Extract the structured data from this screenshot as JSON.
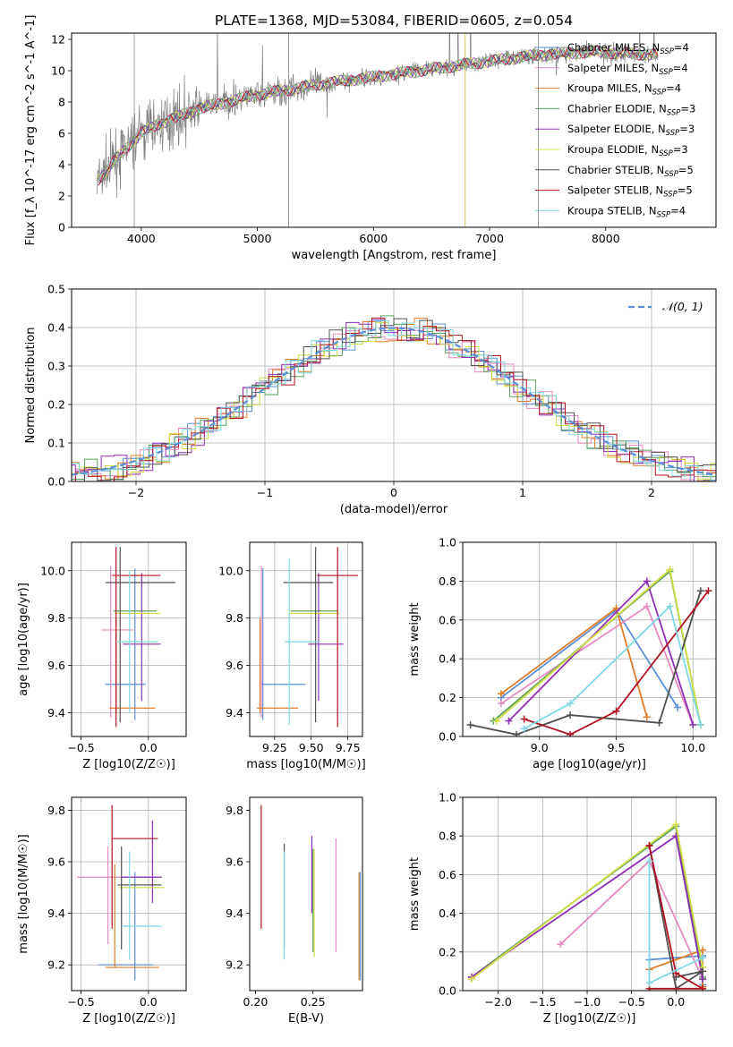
{
  "title": "PLATE=1368, MJD=53084, FIBERID=0605, z=0.054",
  "colors": {
    "chabrier_miles": "#5b8fd6",
    "salpeter_miles": "#e58ac0",
    "kroupa_miles": "#e07c28",
    "chabrier_elodie": "#5aa05a",
    "salpeter_elodie": "#8f2fb5",
    "kroupa_elodie": "#d2dc45",
    "chabrier_stelib": "#505050",
    "salpeter_stelib": "#b01020",
    "kroupa_stelib": "#7fd8e4",
    "data": "#808080",
    "gaussian": "#5b8fd6"
  },
  "legend": [
    {
      "text": "Chabrier MILES, N_SSP=4",
      "color": "#5b8fd6"
    },
    {
      "text": "Salpeter MILES, N_SSP=4",
      "color": "#e58ac0"
    },
    {
      "text": "Kroupa MILES, N_SSP=4",
      "color": "#e07c28"
    },
    {
      "text": "Chabrier ELODIE, N_SSP=3",
      "color": "#5aa05a"
    },
    {
      "text": "Salpeter ELODIE, N_SSP=3",
      "color": "#8f2fb5"
    },
    {
      "text": "Kroupa ELODIE, N_SSP=3",
      "color": "#d2dc45"
    },
    {
      "text": "Chabrier STELIB, N_SSP=5",
      "color": "#505050"
    },
    {
      "text": "Salpeter STELIB, N_SSP=5",
      "color": "#b01020"
    },
    {
      "text": "Kroupa STELIB, N_SSP=4",
      "color": "#7fd8e4"
    }
  ],
  "chart_data": [
    {
      "id": "spectrum",
      "type": "line",
      "title": "PLATE=1368, MJD=53084, FIBERID=0605, z=0.054",
      "xlabel": "wavelength [Angstrom, rest frame]",
      "ylabel": "Flux [f_λ 10^-17 erg cm^-2 s^-1 A^-1]",
      "xlim": [
        3400,
        8950
      ],
      "ylim": [
        0,
        12.4
      ],
      "xticks": [
        4000,
        5000,
        6000,
        7000,
        8000
      ],
      "yticks": [
        0,
        2,
        4,
        6,
        8,
        10,
        12
      ],
      "continuum": {
        "x": [
          3620,
          3700,
          3800,
          3900,
          4000,
          4150,
          4300,
          4500,
          4700,
          4900,
          5100,
          5300,
          5500,
          5800,
          6100,
          6400,
          6700,
          7000,
          7300,
          7600,
          7900,
          8200,
          8450
        ],
        "y": [
          3.0,
          3.6,
          4.5,
          5.3,
          6.0,
          6.6,
          7.0,
          7.6,
          7.9,
          8.3,
          8.6,
          8.8,
          9.1,
          9.4,
          9.7,
          10.0,
          10.3,
          10.6,
          10.9,
          11.1,
          11.2,
          11.1,
          11.0
        ]
      },
      "grid": false,
      "legend": "top-right"
    },
    {
      "id": "residuals",
      "type": "line",
      "xlabel": "(data-model)/error",
      "ylabel": "Normed distribution",
      "xlim": [
        -2.5,
        2.5
      ],
      "ylim": [
        0,
        0.5
      ],
      "xticks": [
        -2,
        -1,
        0,
        1,
        2
      ],
      "yticks": [
        0.0,
        0.1,
        0.2,
        0.3,
        0.4,
        0.5
      ],
      "legend_label": "𝒩(0, 1)",
      "grid": true,
      "legend": "top-right"
    },
    {
      "id": "age_vs_Z",
      "type": "scatter",
      "xlabel": "Z [log10(Z/Z☉)]",
      "ylabel": "age [log10(age/yr)]",
      "xlim": [
        -0.57,
        0.28
      ],
      "ylim": [
        9.3,
        10.12
      ],
      "xticks": [
        -0.5,
        0.0
      ],
      "yticks": [
        9.4,
        9.6,
        9.8,
        10.0
      ],
      "errorbars": [
        {
          "series": "chabrier_miles",
          "x": -0.17,
          "y": 9.52,
          "xerr": 0.15,
          "yerr": 0.0
        },
        {
          "series": "chabrier_miles",
          "x": -0.1,
          "y": 9.69,
          "xerr": 0.0,
          "yerr": 0.32
        },
        {
          "series": "salpeter_miles",
          "x": -0.23,
          "y": 9.75,
          "xerr": 0.12,
          "yerr": 0.0
        },
        {
          "series": "salpeter_miles",
          "x": -0.28,
          "y": 9.7,
          "xerr": 0.0,
          "yerr": 0.32
        },
        {
          "series": "kroupa_miles",
          "x": -0.12,
          "y": 9.42,
          "xerr": 0.17,
          "yerr": 0.0
        },
        {
          "series": "kroupa_miles",
          "x": -0.24,
          "y": 9.6,
          "xerr": 0.0,
          "yerr": 0.2
        },
        {
          "series": "chabrier_elodie",
          "x": -0.1,
          "y": 9.83,
          "xerr": 0.16,
          "yerr": 0.0
        },
        {
          "series": "salpeter_elodie",
          "x": -0.05,
          "y": 9.69,
          "xerr": 0.14,
          "yerr": 0.0
        },
        {
          "series": "salpeter_elodie",
          "x": -0.05,
          "y": 9.72,
          "xerr": 0.0,
          "yerr": 0.27
        },
        {
          "series": "kroupa_elodie",
          "x": -0.08,
          "y": 9.82,
          "xerr": 0.17,
          "yerr": 0.0
        },
        {
          "series": "chabrier_stelib",
          "x": -0.06,
          "y": 9.95,
          "xerr": 0.26,
          "yerr": 0.0
        },
        {
          "series": "chabrier_stelib",
          "x": -0.21,
          "y": 9.73,
          "xerr": 0.0,
          "yerr": 0.37
        },
        {
          "series": "salpeter_stelib",
          "x": -0.09,
          "y": 9.98,
          "xerr": 0.18,
          "yerr": 0.0
        },
        {
          "series": "salpeter_stelib",
          "x": -0.24,
          "y": 9.72,
          "xerr": 0.0,
          "yerr": 0.38
        },
        {
          "series": "kroupa_stelib",
          "x": -0.08,
          "y": 9.7,
          "xerr": 0.15,
          "yerr": 0.0
        },
        {
          "series": "kroupa_stelib",
          "x": -0.14,
          "y": 9.7,
          "xerr": 0.0,
          "yerr": 0.3
        }
      ],
      "grid": true
    },
    {
      "id": "age_vs_mass",
      "type": "scatter",
      "xlabel": "mass [log10(M/M☉)]",
      "ylabel": "",
      "xlim": [
        9.08,
        9.85
      ],
      "ylim": [
        9.3,
        10.12
      ],
      "xticks": [
        9.25,
        9.5,
        9.75
      ],
      "yticks": [
        9.4,
        9.6,
        9.8,
        10.0
      ],
      "errorbars": [
        {
          "series": "chabrier_miles",
          "x": 9.31,
          "y": 9.52,
          "xerr": 0.15,
          "yerr": 0.0
        },
        {
          "series": "chabrier_miles",
          "x": 9.17,
          "y": 9.69,
          "xerr": 0.0,
          "yerr": 0.32
        },
        {
          "series": "salpeter_miles",
          "x": 9.16,
          "y": 9.7,
          "xerr": 0.0,
          "yerr": 0.32
        },
        {
          "series": "kroupa_miles",
          "x": 9.27,
          "y": 9.42,
          "xerr": 0.14,
          "yerr": 0.0
        },
        {
          "series": "kroupa_miles",
          "x": 9.15,
          "y": 9.6,
          "xerr": 0.0,
          "yerr": 0.2
        },
        {
          "series": "chabrier_elodie",
          "x": 9.52,
          "y": 9.83,
          "xerr": 0.16,
          "yerr": 0.0
        },
        {
          "series": "salpeter_elodie",
          "x": 9.6,
          "y": 9.69,
          "xerr": 0.12,
          "yerr": 0.0
        },
        {
          "series": "salpeter_elodie",
          "x": 9.55,
          "y": 9.72,
          "xerr": 0.0,
          "yerr": 0.27
        },
        {
          "series": "kroupa_elodie",
          "x": 9.52,
          "y": 9.82,
          "xerr": 0.17,
          "yerr": 0.0
        },
        {
          "series": "chabrier_stelib",
          "x": 9.48,
          "y": 9.95,
          "xerr": 0.17,
          "yerr": 0.0
        },
        {
          "series": "chabrier_stelib",
          "x": 9.53,
          "y": 9.73,
          "xerr": 0.0,
          "yerr": 0.37
        },
        {
          "series": "salpeter_stelib",
          "x": 9.68,
          "y": 9.98,
          "xerr": 0.14,
          "yerr": 0.0
        },
        {
          "series": "salpeter_stelib",
          "x": 9.68,
          "y": 9.72,
          "xerr": 0.0,
          "yerr": 0.38
        },
        {
          "series": "kroupa_stelib",
          "x": 9.44,
          "y": 9.7,
          "xerr": 0.12,
          "yerr": 0.0
        },
        {
          "series": "kroupa_stelib",
          "x": 9.35,
          "y": 9.7,
          "xerr": 0.0,
          "yerr": 0.35
        }
      ],
      "grid": true
    },
    {
      "id": "weight_vs_age",
      "type": "line",
      "xlabel": "age [log10(age/yr)]",
      "ylabel": "mass weight",
      "xlim": [
        8.5,
        10.15
      ],
      "ylim": [
        0,
        1.0
      ],
      "xticks": [
        9.0,
        9.5,
        10.0
      ],
      "yticks": [
        0.0,
        0.2,
        0.4,
        0.6,
        0.8,
        1.0
      ],
      "series": [
        {
          "key": "chabrier_miles",
          "x": [
            8.75,
            9.5,
            9.9
          ],
          "y": [
            0.2,
            0.65,
            0.15
          ]
        },
        {
          "key": "salpeter_miles",
          "x": [
            8.75,
            9.7,
            10.0
          ],
          "y": [
            0.17,
            0.67,
            0.06
          ]
        },
        {
          "key": "kroupa_miles",
          "x": [
            8.75,
            9.5,
            9.7
          ],
          "y": [
            0.22,
            0.66,
            0.1
          ]
        },
        {
          "key": "chabrier_elodie",
          "x": [
            8.7,
            9.85,
            10.05
          ],
          "y": [
            0.08,
            0.85,
            0.06
          ]
        },
        {
          "key": "salpeter_elodie",
          "x": [
            8.8,
            9.7,
            10.0
          ],
          "y": [
            0.08,
            0.8,
            0.06
          ]
        },
        {
          "key": "kroupa_elodie",
          "x": [
            8.72,
            9.85,
            10.05
          ],
          "y": [
            0.08,
            0.86,
            0.06
          ]
        },
        {
          "key": "chabrier_stelib",
          "x": [
            8.55,
            8.85,
            9.2,
            9.78,
            10.05
          ],
          "y": [
            0.06,
            0.01,
            0.11,
            0.07,
            0.75
          ]
        },
        {
          "key": "salpeter_stelib",
          "x": [
            8.9,
            9.2,
            9.5,
            10.1
          ],
          "y": [
            0.09,
            0.01,
            0.13,
            0.75
          ]
        },
        {
          "key": "kroupa_stelib",
          "x": [
            8.9,
            9.2,
            9.85,
            10.05
          ],
          "y": [
            0.04,
            0.17,
            0.67,
            0.06
          ]
        }
      ],
      "grid": true
    },
    {
      "id": "mass_vs_Z",
      "type": "scatter",
      "xlabel": "Z [log10(Z/Z☉)]",
      "ylabel": "mass [log10(M/M☉)]",
      "xlim": [
        -0.57,
        0.28
      ],
      "ylim": [
        9.1,
        9.85
      ],
      "xticks": [
        -0.5,
        0.0
      ],
      "yticks": [
        9.2,
        9.4,
        9.6,
        9.8
      ],
      "errorbars": [
        {
          "series": "chabrier_miles",
          "x": -0.17,
          "y": 9.2,
          "xerr": 0.2,
          "yerr": 0.0
        },
        {
          "series": "chabrier_miles",
          "x": -0.1,
          "y": 9.35,
          "xerr": 0.0,
          "yerr": 0.21
        },
        {
          "series": "salpeter_miles",
          "x": -0.23,
          "y": 9.54,
          "xerr": 0.3,
          "yerr": 0.0
        },
        {
          "series": "salpeter_miles",
          "x": -0.3,
          "y": 9.47,
          "xerr": 0.0,
          "yerr": 0.19
        },
        {
          "series": "kroupa_miles",
          "x": -0.12,
          "y": 9.19,
          "xerr": 0.2,
          "yerr": 0.0
        },
        {
          "series": "kroupa_miles",
          "x": -0.25,
          "y": 9.39,
          "xerr": 0.0,
          "yerr": 0.2
        },
        {
          "series": "chabrier_elodie",
          "x": -0.05,
          "y": 9.51,
          "xerr": 0.15,
          "yerr": 0.0
        },
        {
          "series": "salpeter_elodie",
          "x": -0.05,
          "y": 9.54,
          "xerr": 0.15,
          "yerr": 0.0
        },
        {
          "series": "salpeter_elodie",
          "x": 0.03,
          "y": 9.6,
          "xerr": 0.0,
          "yerr": 0.16
        },
        {
          "series": "kroupa_elodie",
          "x": -0.05,
          "y": 9.5,
          "xerr": 0.17,
          "yerr": 0.0
        },
        {
          "series": "chabrier_stelib",
          "x": -0.07,
          "y": 9.51,
          "xerr": 0.16,
          "yerr": 0.0
        },
        {
          "series": "chabrier_stelib",
          "x": -0.2,
          "y": 9.46,
          "xerr": 0.0,
          "yerr": 0.2
        },
        {
          "series": "salpeter_stelib",
          "x": -0.1,
          "y": 9.69,
          "xerr": 0.17,
          "yerr": 0.0
        },
        {
          "series": "salpeter_stelib",
          "x": -0.27,
          "y": 9.58,
          "xerr": 0.0,
          "yerr": 0.24
        },
        {
          "series": "kroupa_stelib",
          "x": -0.05,
          "y": 9.35,
          "xerr": 0.15,
          "yerr": 0.0
        },
        {
          "series": "kroupa_stelib",
          "x": -0.14,
          "y": 9.43,
          "xerr": 0.0,
          "yerr": 0.21
        }
      ],
      "grid": true
    },
    {
      "id": "mass_vs_ebv",
      "type": "scatter",
      "xlabel": "E(B-V)",
      "ylabel": "",
      "xlim": [
        0.195,
        0.293
      ],
      "ylim": [
        9.1,
        9.85
      ],
      "xticks": [
        0.2,
        0.25
      ],
      "yticks": [
        9.2,
        9.4,
        9.6,
        9.8
      ],
      "errorbars": [
        {
          "series": "salpeter_stelib",
          "x": 0.205,
          "y": 9.58,
          "xerr": 0.0,
          "yerr": 0.24
        },
        {
          "series": "chabrier_stelib",
          "x": 0.225,
          "y": 9.47,
          "xerr": 0.0,
          "yerr": 0.2
        },
        {
          "series": "kroupa_stelib",
          "x": 0.225,
          "y": 9.43,
          "xerr": 0.0,
          "yerr": 0.21
        },
        {
          "series": "salpeter_elodie",
          "x": 0.249,
          "y": 9.55,
          "xerr": 0.0,
          "yerr": 0.15
        },
        {
          "series": "chabrier_elodie",
          "x": 0.25,
          "y": 9.45,
          "xerr": 0.0,
          "yerr": 0.2
        },
        {
          "series": "kroupa_elodie",
          "x": 0.251,
          "y": 9.44,
          "xerr": 0.0,
          "yerr": 0.21
        },
        {
          "series": "salpeter_miles",
          "x": 0.27,
          "y": 9.47,
          "xerr": 0.0,
          "yerr": 0.22
        },
        {
          "series": "kroupa_miles",
          "x": 0.29,
          "y": 9.35,
          "xerr": 0.0,
          "yerr": 0.21
        },
        {
          "series": "chabrier_miles",
          "x": 0.291,
          "y": 9.35,
          "xerr": 0.0,
          "yerr": 0.21
        }
      ],
      "grid": false
    },
    {
      "id": "weight_vs_Z",
      "type": "line",
      "xlabel": "Z [log10(Z/Z☉)]",
      "ylabel": "mass weight",
      "xlim": [
        -2.4,
        0.45
      ],
      "ylim": [
        0,
        1.0
      ],
      "xticks": [
        -2.0,
        -1.5,
        -1.0,
        -0.5,
        0.0
      ],
      "yticks": [
        0.0,
        0.2,
        0.4,
        0.6,
        0.8,
        1.0
      ],
      "series": [
        {
          "key": "chabrier_miles",
          "x": [
            -0.3,
            0.3,
            0.3
          ],
          "y": [
            0.16,
            0.18,
            0.03
          ]
        },
        {
          "key": "salpeter_miles",
          "x": [
            -1.3,
            -0.3,
            0.3
          ],
          "y": [
            0.24,
            0.67,
            0.06
          ]
        },
        {
          "key": "kroupa_miles",
          "x": [
            -0.3,
            0.3,
            0.3
          ],
          "y": [
            0.11,
            0.21,
            0.02
          ]
        },
        {
          "key": "chabrier_elodie",
          "x": [
            -2.3,
            0.0,
            0.3
          ],
          "y": [
            0.07,
            0.85,
            0.07
          ]
        },
        {
          "key": "salpeter_elodie",
          "x": [
            -2.3,
            0.0,
            0.3
          ],
          "y": [
            0.07,
            0.8,
            0.06
          ]
        },
        {
          "key": "kroupa_elodie",
          "x": [
            -2.3,
            0.0,
            0.3
          ],
          "y": [
            0.06,
            0.86,
            0.12
          ]
        },
        {
          "key": "chabrier_stelib",
          "x": [
            -0.3,
            0.0,
            0.3,
            0.0
          ],
          "y": [
            0.75,
            0.01,
            0.1,
            0.07
          ]
        },
        {
          "key": "salpeter_stelib",
          "x": [
            -0.3,
            0.0,
            0.3,
            -0.3
          ],
          "y": [
            0.75,
            0.09,
            0.01,
            0.01
          ]
        },
        {
          "key": "kroupa_stelib",
          "x": [
            -0.3,
            -0.3,
            0.3
          ],
          "y": [
            0.67,
            0.04,
            0.17
          ]
        }
      ],
      "grid": true
    }
  ]
}
